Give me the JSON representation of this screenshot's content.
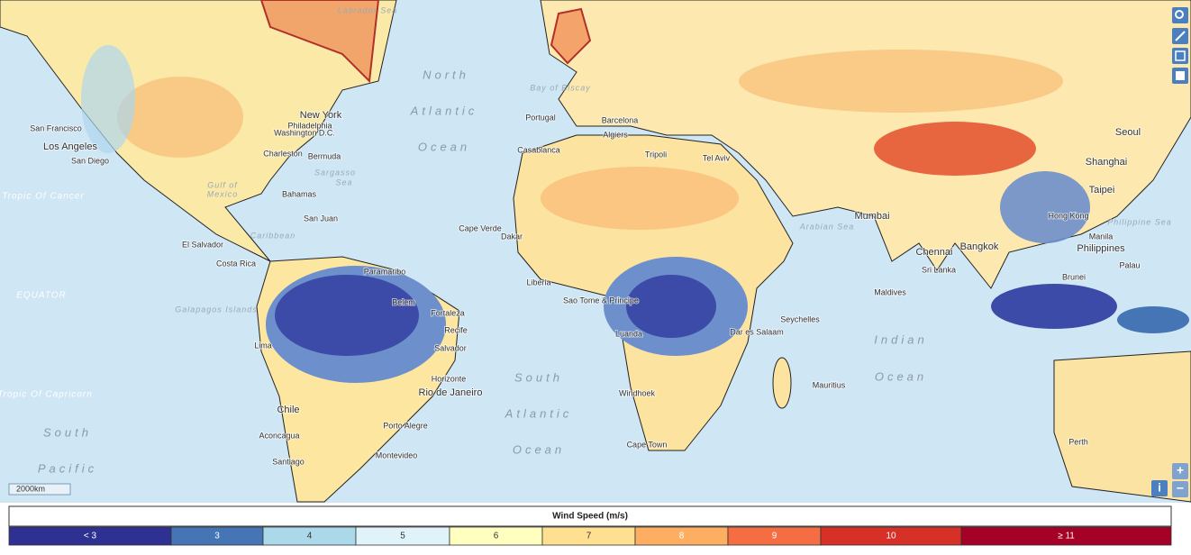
{
  "map_labels": [
    "North",
    "Atlantic",
    "Ocean",
    "South",
    "Atlantic",
    "Ocean",
    "Indian",
    "Ocean",
    "South",
    "Pacific",
    "Gulf of",
    "Mexico",
    "Sargasso",
    "Sea",
    "Caribbean",
    "Tropic Of Cancer",
    "EQUATOR",
    "Tropic Of Capricorn",
    "San Francisco",
    "Los Angeles",
    "San Diego",
    "New York",
    "Philadelphia",
    "Washington D.C.",
    "Charleston",
    "Bermuda",
    "Bahamas",
    "San Juan",
    "El Salvador",
    "Costa Rica",
    "Paramaribo",
    "Belem",
    "Fortaleza",
    "Recife",
    "Salvador",
    "Lima",
    "Galapagos Islands",
    "Horizonte",
    "Rio de Janeiro",
    "Chile",
    "Aconcagua",
    "Santiago",
    "Porto Alegre",
    "Montevideo",
    "Portugal",
    "Barcelona",
    "Algiers",
    "Casablanca",
    "Tripoli",
    "Tel Aviv",
    "Cape Verde",
    "Dakar",
    "Liberia",
    "Sao Tome & Principe",
    "Luanda",
    "Windhoek",
    "Cape Town",
    "Seychelles",
    "Dar es Salaam",
    "Mauritius",
    "Mumbai",
    "Arabian Sea",
    "Chennai",
    "Sri Lanka",
    "Maldives",
    "Bangkok",
    "Hong Kong",
    "Taipei",
    "Manila",
    "Philippines",
    "Philippine Sea",
    "Seoul",
    "Shanghai",
    "Brunei",
    "Palau",
    "Perth",
    "Labrador Sea",
    "Bay of Biscay"
  ],
  "scale_bar": "2000km",
  "controls": {
    "zoom_in": "+",
    "zoom_out": "−",
    "info": "i"
  },
  "legend": {
    "title": "Wind Speed (m/s)",
    "classes": [
      {
        "label": "< 3",
        "color": "#2e3192"
      },
      {
        "label": "3",
        "color": "#4575b4"
      },
      {
        "label": "4",
        "color": "#abd9e9"
      },
      {
        "label": "5",
        "color": "#e0f3f8"
      },
      {
        "label": "6",
        "color": "#ffffbf"
      },
      {
        "label": "7",
        "color": "#fee090"
      },
      {
        "label": "8",
        "color": "#fdae61"
      },
      {
        "label": "9",
        "color": "#f46d43"
      },
      {
        "label": "10",
        "color": "#d73027"
      },
      {
        "label": "≥ 11",
        "color": "#a50026"
      }
    ]
  }
}
